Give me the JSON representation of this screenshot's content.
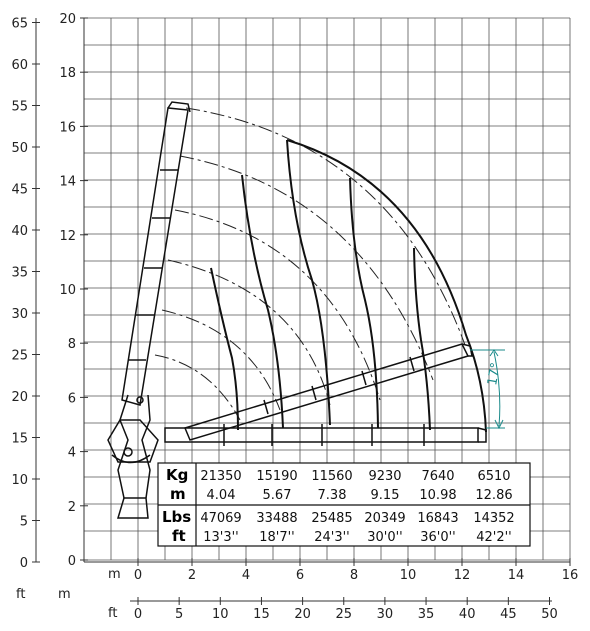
{
  "axes": {
    "left_ft_ticks": [
      "65",
      "60",
      "55",
      "50",
      "45",
      "40",
      "35",
      "30",
      "25",
      "20",
      "15",
      "10",
      "5",
      "0"
    ],
    "left_m_ticks": [
      "20",
      "18",
      "16",
      "14",
      "12",
      "10",
      "8",
      "6",
      "4",
      "2",
      "0"
    ],
    "bottom_m_ticks": [
      "0",
      "2",
      "4",
      "6",
      "8",
      "10",
      "12",
      "14",
      "16"
    ],
    "bottom_ft_ticks": [
      "0",
      "5",
      "10",
      "15",
      "20",
      "25",
      "30",
      "35",
      "40",
      "45",
      "50"
    ],
    "unit_ft_left": "ft",
    "unit_m_left": "m",
    "unit_m_bottom": "m",
    "unit_ft_bottom": "ft"
  },
  "angle_label": "17°",
  "table": {
    "kg_label": "Kg",
    "m_label": "m",
    "lbs_label": "Lbs",
    "ft_label": "ft",
    "kg": [
      "21350",
      "15190",
      "11560",
      "9230",
      "7640",
      "6510"
    ],
    "m": [
      "4.04",
      "5.67",
      "7.38",
      "9.15",
      "10.98",
      "12.86"
    ],
    "lbs": [
      "47069",
      "33488",
      "25485",
      "20349",
      "16843",
      "14352"
    ],
    "ft": [
      "13'3''",
      "18'7''",
      "24'3''",
      "30'0''",
      "36'0''",
      "42'2''"
    ]
  },
  "colors": {
    "line": "#111111",
    "grid": "#555555",
    "angle": "#1a8a8a"
  }
}
